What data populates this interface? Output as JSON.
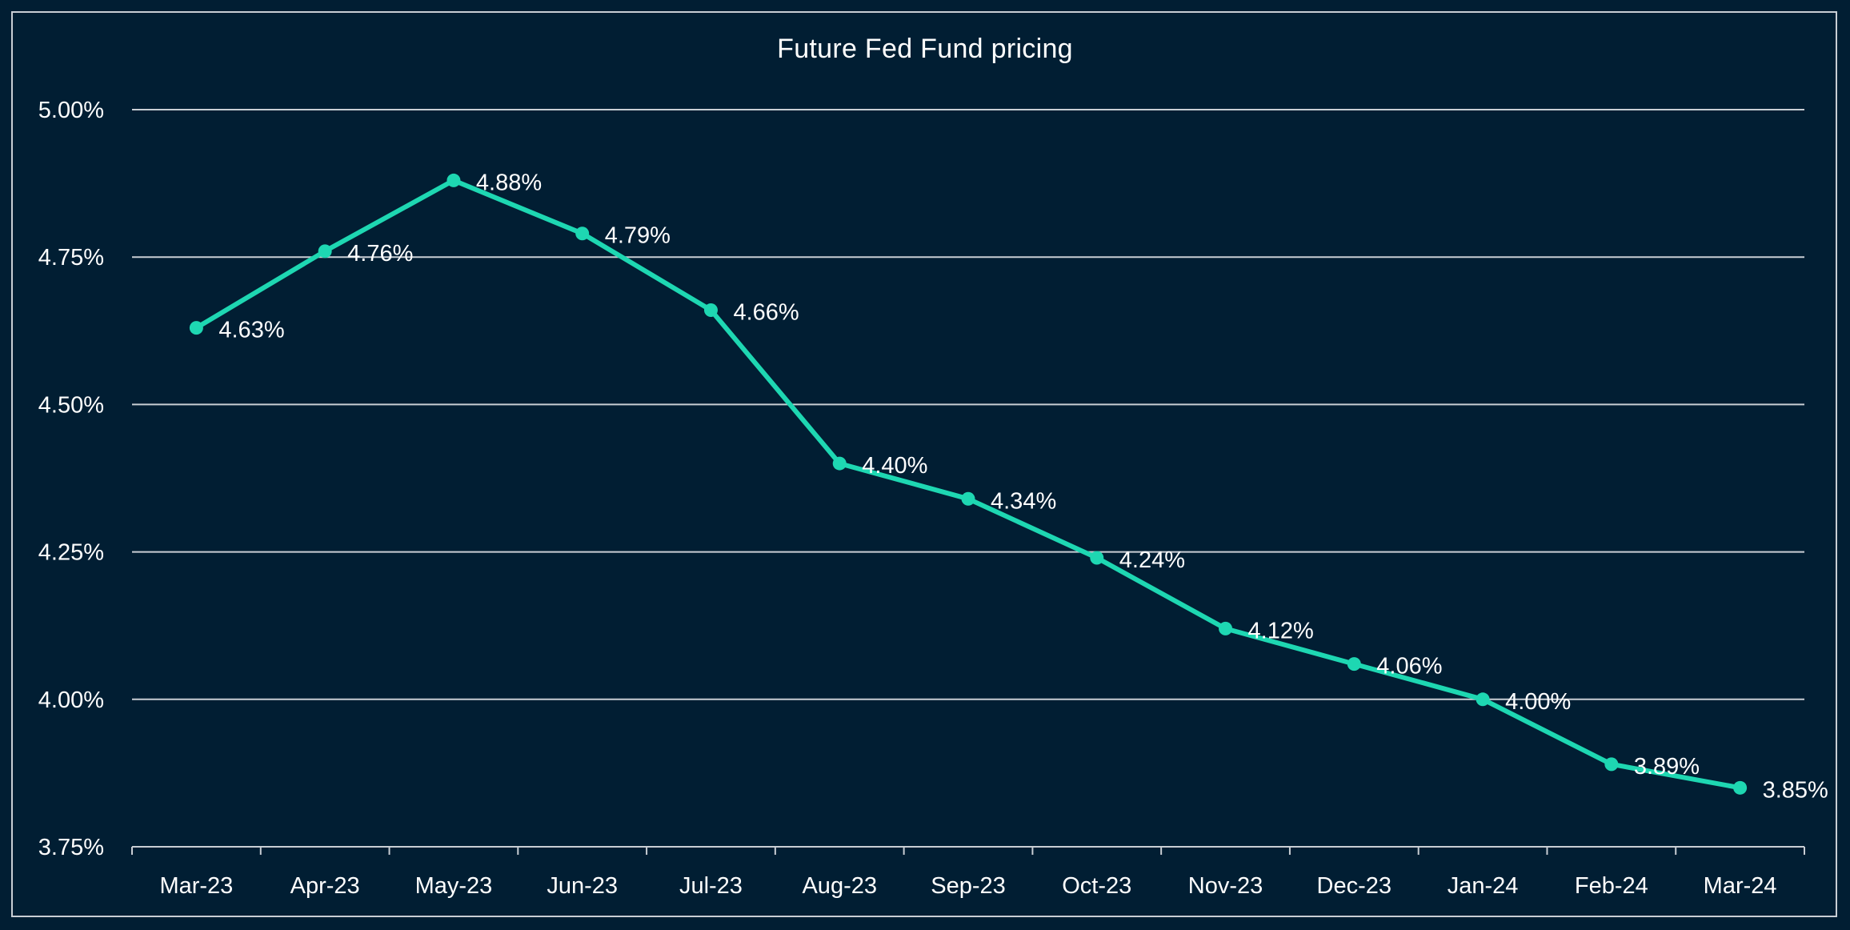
{
  "chart_data": {
    "type": "line",
    "title": "Future Fed Fund pricing",
    "xlabel": "",
    "ylabel": "",
    "categories": [
      "Mar-23",
      "Apr-23",
      "May-23",
      "Jun-23",
      "Jul-23",
      "Aug-23",
      "Sep-23",
      "Oct-23",
      "Nov-23",
      "Dec-23",
      "Jan-24",
      "Feb-24",
      "Mar-24"
    ],
    "values": [
      4.63,
      4.76,
      4.88,
      4.79,
      4.66,
      4.4,
      4.34,
      4.24,
      4.12,
      4.06,
      4.0,
      3.89,
      3.85
    ],
    "data_labels": [
      "4.63%",
      "4.76%",
      "4.88%",
      "4.79%",
      "4.66%",
      "4.40%",
      "4.34%",
      "4.24%",
      "4.12%",
      "4.06%",
      "4.00%",
      "3.89%",
      "3.85%"
    ],
    "ylim": [
      3.75,
      5.0
    ],
    "yticks": [
      3.75,
      4.0,
      4.25,
      4.5,
      4.75,
      5.0
    ],
    "ytick_labels": [
      "3.75%",
      "4.00%",
      "4.25%",
      "4.50%",
      "4.75%",
      "5.00%"
    ],
    "grid": true,
    "legend": false,
    "colors": {
      "background": "#011e33",
      "line": "#1ed7b2",
      "grid": "#c9ced4",
      "text": "#ffffff"
    }
  }
}
